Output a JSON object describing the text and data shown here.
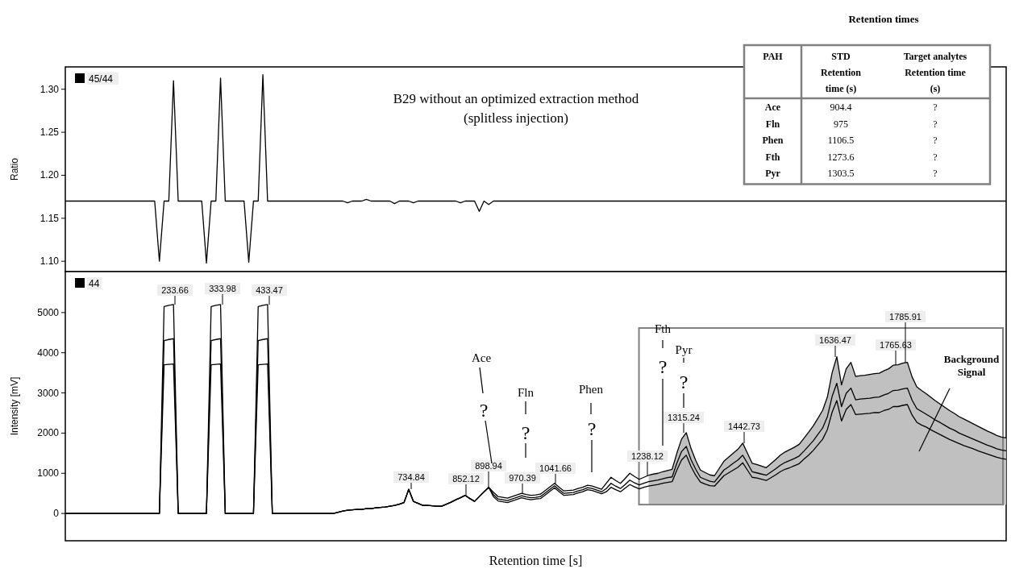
{
  "chart_data": [
    {
      "type": "line",
      "title": "B29 without an optimized extraction method",
      "subtitle": "(splitless injection)",
      "ylabel": "Ratio",
      "ylim": [
        1.088,
        1.326
      ],
      "yticks": [
        {
          "value": 1.1,
          "label": "1.10"
        },
        1.15,
        {
          "value": 1.2,
          "label": "1.20"
        },
        1.25,
        {
          "value": 1.3,
          "label": "1.30"
        }
      ],
      "tick_labels": "y",
      "legend": "top left",
      "categories": [
        null,
        null,
        null,
        null,
        null,
        null,
        null,
        null,
        null,
        null,
        null,
        null,
        null,
        null,
        null,
        null,
        null,
        null,
        null,
        null,
        null,
        null,
        null,
        null,
        null,
        null,
        null,
        null,
        null,
        null,
        null,
        null,
        null,
        null,
        null,
        null,
        null,
        null,
        null,
        null,
        null,
        null,
        null,
        null,
        null,
        null,
        null,
        null,
        null,
        null,
        null,
        null,
        null,
        null,
        null,
        null,
        null,
        null,
        null,
        null,
        null,
        null,
        null,
        null,
        null,
        null,
        null,
        null,
        null,
        null,
        null,
        null,
        null,
        null,
        null,
        null,
        null,
        null,
        null,
        null,
        null,
        null,
        null,
        null,
        null,
        null,
        null,
        null,
        null,
        null,
        null,
        null,
        null,
        null,
        null,
        null,
        null,
        null,
        null,
        null,
        null,
        null,
        null,
        null,
        null,
        null,
        null,
        null,
        null,
        null,
        null,
        null,
        null,
        null,
        null,
        null,
        null,
        null,
        null,
        null,
        null,
        null,
        null,
        null,
        null,
        null,
        null,
        null,
        null,
        null,
        null,
        null,
        null,
        null,
        null,
        null,
        null,
        null,
        null,
        null,
        null,
        null,
        null,
        null,
        null,
        null,
        null,
        null,
        null,
        null,
        null,
        null,
        null,
        null,
        null,
        null,
        null,
        null,
        null,
        null,
        null,
        null,
        null,
        null,
        null,
        null,
        null,
        null,
        null,
        null,
        null,
        null,
        null,
        null,
        null,
        null,
        null,
        null,
        null,
        null,
        null,
        null,
        null,
        null,
        null,
        null,
        null,
        null,
        null,
        null,
        null,
        null,
        null,
        null,
        null,
        null,
        null,
        null,
        null,
        null,
        null
      ],
      "series": [
        {
          "name": "45/44",
          "color": "#000000",
          "values": [
            1.17,
            1.17,
            1.17,
            1.17,
            1.17,
            1.17,
            1.17,
            1.17,
            1.17,
            1.17,
            1.17,
            1.17,
            1.17,
            1.17,
            1.17,
            1.17,
            1.17,
            1.17,
            1.17,
            1.17,
            1.1,
            1.17,
            1.17,
            1.31,
            1.17,
            1.17,
            1.17,
            1.17,
            1.17,
            1.17,
            1.098,
            1.17,
            1.17,
            1.313,
            1.17,
            1.17,
            1.17,
            1.17,
            1.17,
            1.099,
            1.17,
            1.17,
            1.317,
            1.17,
            1.17,
            1.17,
            1.17,
            1.17,
            1.17,
            1.17,
            1.17,
            1.17,
            1.17,
            1.17,
            1.17,
            1.17,
            1.17,
            1.17,
            1.17,
            1.17,
            1.168,
            1.17,
            1.17,
            1.17,
            1.172,
            1.17,
            1.17,
            1.17,
            1.17,
            1.17,
            1.167,
            1.17,
            1.17,
            1.17,
            1.168,
            1.17,
            1.17,
            1.17,
            1.17,
            1.17,
            1.17,
            1.17,
            1.17,
            1.17,
            1.168,
            1.17,
            1.17,
            1.17,
            1.158,
            1.17,
            1.166,
            1.17,
            1.17,
            1.17,
            1.17,
            1.17,
            1.17,
            1.17,
            1.17,
            1.17,
            1.17,
            1.17,
            1.17,
            1.17,
            1.17,
            1.17,
            1.17,
            1.17,
            1.17,
            1.17,
            1.17,
            1.17,
            1.17,
            1.17,
            1.17,
            1.17,
            1.17,
            1.17,
            1.17,
            1.17,
            1.17,
            1.17,
            1.17,
            1.17,
            1.17,
            1.17,
            1.17,
            1.17,
            1.17,
            1.17,
            1.17,
            1.17,
            1.17,
            1.17,
            1.17,
            1.17,
            1.17,
            1.17,
            1.17,
            1.17,
            1.17,
            1.17,
            1.17,
            1.17,
            1.17,
            1.17,
            1.17,
            1.17,
            1.17,
            1.17,
            1.17,
            1.17,
            1.17,
            1.17,
            1.17,
            1.17,
            1.17,
            1.17,
            1.17,
            1.17,
            1.17,
            1.17,
            1.17,
            1.17,
            1.17,
            1.17,
            1.17,
            1.17,
            1.17,
            1.17,
            1.17,
            1.17,
            1.17,
            1.17,
            1.17,
            1.17,
            1.17,
            1.17,
            1.17,
            1.17,
            1.17,
            1.17,
            1.17,
            1.17,
            1.17,
            1.17,
            1.17,
            1.17,
            1.17,
            1.17,
            1.17,
            1.17,
            1.17,
            1.17,
            1.17,
            1.17,
            1.17,
            1.17,
            1.17,
            1.17,
            1.17
          ]
        }
      ]
    },
    {
      "type": "line",
      "ylabel": "Intensity [mV]",
      "xlabel": "Retention time   [s]",
      "ylim": [
        -680,
        6020
      ],
      "yticks": [
        0,
        1000,
        2000,
        3000,
        4000,
        5000
      ],
      "tick_labels": "y",
      "legend": "top left",
      "categories": [
        null,
        null,
        null,
        null,
        null,
        null,
        null,
        null,
        null,
        null,
        null,
        null,
        null,
        null,
        null,
        null,
        null,
        null,
        null,
        null,
        null,
        null,
        null,
        null,
        null,
        null,
        null,
        null,
        null,
        null,
        null,
        null,
        null,
        null,
        null,
        null,
        null,
        null,
        null,
        null,
        null,
        null,
        null,
        null,
        null,
        null,
        null,
        null,
        null,
        null,
        null,
        null,
        null,
        null,
        null,
        null,
        null,
        null,
        null,
        null,
        null,
        null,
        null,
        null,
        null,
        null,
        null,
        null,
        null,
        null,
        null,
        null,
        null,
        null,
        null,
        null,
        null,
        null,
        null,
        null,
        null,
        null,
        null,
        null,
        null,
        null,
        null,
        null,
        null,
        null,
        null,
        null,
        null,
        null,
        null,
        null,
        null,
        null,
        null,
        null,
        null,
        null,
        null,
        null,
        null,
        null,
        null,
        null,
        null,
        null,
        null,
        null,
        null,
        null,
        null,
        null,
        null,
        null,
        null,
        null,
        null,
        null,
        null,
        null,
        null,
        null,
        null,
        null,
        null,
        null,
        null,
        null,
        null,
        null,
        null,
        null,
        null,
        null,
        null,
        null,
        null,
        null,
        null,
        null,
        null,
        null,
        null,
        null,
        null,
        null,
        null,
        null,
        null,
        null,
        null,
        null,
        null,
        null,
        null,
        null,
        null,
        null,
        null,
        null,
        null,
        null,
        null,
        null,
        null,
        null,
        null,
        null,
        null,
        null,
        null,
        null,
        null,
        null,
        null,
        null,
        null,
        null,
        null,
        null,
        null,
        null,
        null,
        null,
        null,
        null,
        null,
        null,
        null,
        null,
        null,
        null,
        null,
        null,
        null,
        null,
        null
      ],
      "series": [
        {
          "name": "44",
          "color": "#000000",
          "values": [
            0,
            0,
            0,
            0,
            0,
            0,
            0,
            0,
            0,
            0,
            0,
            0,
            0,
            0,
            0,
            0,
            0,
            0,
            0,
            0,
            0,
            5150,
            5180,
            5200,
            0,
            0,
            0,
            0,
            0,
            0,
            0,
            5150,
            5180,
            5200,
            0,
            0,
            0,
            0,
            0,
            0,
            0,
            5150,
            5180,
            5200,
            0,
            0,
            0,
            0,
            0,
            0,
            0,
            0,
            0,
            0,
            0,
            0,
            0,
            0,
            30,
            60,
            80,
            90,
            100,
            100,
            120,
            120,
            140,
            150,
            160,
            180,
            200,
            230,
            270,
            600,
            300,
            250,
            200,
            200,
            190,
            180,
            180,
            230,
            280,
            340,
            390,
            450,
            370,
            300,
            420,
            540,
            650,
            530,
            420,
            400,
            380,
            420,
            460,
            500,
            470,
            450,
            460,
            480,
            570,
            660,
            750,
            650,
            560,
            570,
            580,
            620,
            650,
            700,
            680,
            640,
            600,
            750,
            900,
            820,
            750,
            870,
            1000,
            920,
            850,
            900,
            950,
            980,
            1000,
            1040,
            1070,
            1100,
            1500,
            1850,
            2010,
            1620,
            1320,
            1080,
            1020,
            960,
            940,
            1120,
            1300,
            1400,
            1500,
            1600,
            1750,
            1500,
            1250,
            1220,
            1180,
            1140,
            1240,
            1340,
            1450,
            1530,
            1590,
            1650,
            1720,
            1870,
            2020,
            2180,
            2370,
            2570,
            2900,
            3500,
            3900,
            3200,
            3600,
            3760,
            3410,
            3430,
            3440,
            3460,
            3480,
            3490,
            3550,
            3600,
            3690,
            3700,
            3740,
            3760,
            3400,
            3150,
            3060,
            2980,
            2890,
            2800,
            2720,
            2640,
            2560,
            2490,
            2410,
            2350,
            2290,
            2230,
            2170,
            2110,
            2050,
            2000,
            1940,
            1900,
            1880
          ],
          "lower": [
            null,
            null,
            null,
            null,
            null,
            null,
            null,
            null,
            null,
            null,
            null,
            null,
            null,
            null,
            null,
            null,
            null,
            null,
            null,
            null,
            null,
            null,
            null,
            null,
            null,
            null,
            null,
            null,
            null,
            null,
            null,
            null,
            null,
            null,
            null,
            null,
            null,
            null,
            null,
            null,
            null,
            null,
            null,
            null,
            null,
            null,
            null,
            null,
            null,
            null,
            null,
            null,
            null,
            null,
            null,
            null,
            null,
            null,
            null,
            null,
            null,
            null,
            null,
            null,
            null,
            null,
            null,
            null,
            null,
            null,
            null,
            null,
            null,
            null,
            null,
            null,
            null,
            null,
            null,
            null,
            null,
            null,
            null,
            null,
            null,
            null,
            null,
            null,
            null,
            null,
            null,
            null,
            null,
            null,
            null,
            null,
            null,
            null,
            null,
            null,
            null,
            null,
            null,
            null,
            null,
            null,
            null,
            null,
            null,
            null,
            null,
            null,
            null,
            null,
            null,
            null,
            null,
            null,
            null,
            null,
            null,
            null,
            null,
            null,
            220,
            220,
            220,
            220,
            220,
            220,
            220,
            220,
            220,
            220,
            220,
            220,
            220,
            220,
            220,
            220,
            220,
            220,
            220,
            220,
            220,
            220,
            220,
            220,
            220,
            220,
            220,
            220,
            220,
            220,
            220,
            220,
            220,
            220,
            220,
            220,
            220,
            220,
            220,
            220,
            220,
            220,
            220,
            220,
            220,
            220,
            220,
            220,
            220,
            220,
            220,
            220,
            220,
            220,
            220,
            220,
            220,
            220,
            220,
            220,
            220,
            220,
            220,
            220,
            220,
            220,
            220,
            220,
            220,
            220,
            220,
            220,
            220,
            220,
            220,
            220,
            220
          ],
          "upper": [
            null,
            null,
            null,
            null,
            null,
            null,
            null,
            null,
            null,
            null,
            null,
            null,
            null,
            null,
            null,
            null,
            null,
            null,
            null,
            null,
            null,
            null,
            null,
            null,
            null,
            null,
            null,
            null,
            null,
            null,
            null,
            null,
            null,
            null,
            null,
            null,
            null,
            null,
            null,
            null,
            null,
            null,
            null,
            null,
            null,
            null,
            null,
            null,
            null,
            null,
            null,
            null,
            null,
            null,
            null,
            null,
            null,
            null,
            null,
            null,
            null,
            null,
            null,
            null,
            null,
            null,
            null,
            null,
            null,
            null,
            null,
            null,
            null,
            null,
            null,
            null,
            null,
            null,
            null,
            null,
            null,
            null,
            null,
            null,
            null,
            null,
            null,
            null,
            null,
            null,
            null,
            null,
            null,
            null,
            null,
            null,
            null,
            null,
            null,
            null,
            null,
            null,
            null,
            null,
            null,
            null,
            null,
            null,
            null,
            null,
            null,
            null,
            null,
            null,
            null,
            null,
            null,
            null,
            null,
            null,
            null,
            null,
            null,
            null,
            950,
            980,
            1000,
            1040,
            1070,
            1100,
            1500,
            1850,
            2010,
            1620,
            1320,
            1080,
            1020,
            960,
            940,
            1120,
            1300,
            1400,
            1500,
            1600,
            1750,
            1500,
            1250,
            1220,
            1180,
            1140,
            1240,
            1340,
            1450,
            1530,
            1590,
            1650,
            1720,
            1870,
            2020,
            2180,
            2370,
            2570,
            2900,
            3500,
            3900,
            3200,
            3600,
            3760,
            3410,
            3430,
            3440,
            3460,
            3480,
            3490,
            3550,
            3600,
            3690,
            3700,
            3740,
            3760,
            3400,
            3150,
            3060,
            2980,
            2890,
            2800,
            2720,
            2640,
            2560,
            2490,
            2410,
            2350,
            2290,
            2230,
            2170,
            2110,
            2050,
            2000,
            1940,
            1900,
            1880
          ]
        },
        {
          "color": "#000000",
          "values": [
            0,
            0,
            0,
            0,
            0,
            0,
            0,
            0,
            0,
            0,
            0,
            0,
            0,
            0,
            0,
            0,
            0,
            0,
            0,
            0,
            0,
            4300,
            4330,
            4350,
            0,
            0,
            0,
            0,
            0,
            0,
            0,
            4300,
            4330,
            4350,
            0,
            0,
            0,
            0,
            0,
            0,
            0,
            4300,
            4330,
            4350,
            0,
            0,
            0,
            0,
            0,
            0,
            0,
            0,
            0,
            0,
            0,
            0,
            0,
            0,
            30,
            60,
            80,
            90,
            100,
            100,
            120,
            120,
            140,
            150,
            160,
            180,
            200,
            230,
            270,
            600,
            300,
            250,
            200,
            200,
            190,
            180,
            180,
            230,
            280,
            340,
            390,
            450,
            370,
            300,
            420,
            540,
            650,
            470,
            360,
            340,
            320,
            360,
            400,
            440,
            410,
            390,
            400,
            420,
            510,
            600,
            690,
            590,
            500,
            510,
            520,
            560,
            590,
            640,
            620,
            580,
            540,
            620,
            750,
            680,
            620,
            720,
            830,
            760,
            710,
            750,
            790,
            810,
            830,
            860,
            890,
            910,
            1250,
            1540,
            1670,
            1340,
            1100,
            900,
            850,
            800,
            780,
            930,
            1080,
            1160,
            1250,
            1330,
            1450,
            1250,
            1040,
            1010,
            980,
            950,
            1030,
            1110,
            1200,
            1270,
            1320,
            1370,
            1430,
            1550,
            1680,
            1810,
            1970,
            2130,
            2410,
            2910,
            3240,
            2660,
            2990,
            3120,
            2830,
            2850,
            2860,
            2870,
            2890,
            2900,
            2950,
            2990,
            3060,
            3070,
            3100,
            3120,
            2820,
            2610,
            2540,
            2470,
            2400,
            2320,
            2260,
            2190,
            2120,
            2070,
            2000,
            1950,
            1900,
            1850,
            1800,
            1750,
            1700,
            1660,
            1610,
            1580,
            1560
          ]
        },
        {
          "color": "#000000",
          "values": [
            0,
            0,
            0,
            0,
            0,
            0,
            0,
            0,
            0,
            0,
            0,
            0,
            0,
            0,
            0,
            0,
            0,
            0,
            0,
            0,
            0,
            3700,
            3710,
            3720,
            0,
            0,
            0,
            0,
            0,
            0,
            0,
            3700,
            3710,
            3720,
            0,
            0,
            0,
            0,
            0,
            0,
            0,
            3700,
            3710,
            3720,
            0,
            0,
            0,
            0,
            0,
            0,
            0,
            0,
            0,
            0,
            0,
            0,
            0,
            0,
            30,
            60,
            80,
            90,
            100,
            100,
            120,
            120,
            140,
            150,
            160,
            180,
            200,
            230,
            270,
            600,
            300,
            250,
            200,
            200,
            190,
            180,
            180,
            230,
            280,
            340,
            390,
            450,
            370,
            300,
            420,
            540,
            650,
            420,
            310,
            290,
            270,
            310,
            350,
            390,
            360,
            340,
            360,
            370,
            460,
            550,
            640,
            540,
            450,
            460,
            470,
            510,
            540,
            590,
            570,
            530,
            490,
            540,
            650,
            590,
            540,
            630,
            720,
            660,
            610,
            650,
            680,
            700,
            720,
            750,
            770,
            790,
            1080,
            1330,
            1450,
            1170,
            950,
            780,
            730,
            690,
            680,
            810,
            940,
            1010,
            1080,
            1150,
            1260,
            1080,
            900,
            880,
            850,
            820,
            890,
            960,
            1040,
            1100,
            1140,
            1190,
            1240,
            1350,
            1450,
            1570,
            1710,
            1850,
            2090,
            2520,
            2810,
            2300,
            2590,
            2710,
            2460,
            2470,
            2480,
            2490,
            2510,
            2510,
            2560,
            2590,
            2660,
            2660,
            2690,
            2710,
            2450,
            2270,
            2200,
            2150,
            2080,
            2020,
            1960,
            1900,
            1840,
            1790,
            1740,
            1690,
            1650,
            1610,
            1560,
            1520,
            1480,
            1440,
            1400,
            1370,
            1350
          ]
        }
      ],
      "annotations": [
        "233.66",
        "333.98",
        "433.47",
        "734.84",
        "852.12",
        "898.94",
        "970.39",
        "1041.66",
        "1238.12",
        "1315.24",
        "1442.73",
        "1636.47",
        "1765.63",
        "1785.91",
        "Ace",
        "?",
        "Fln",
        "?",
        "Phen",
        "?",
        "Fth",
        "?",
        "Pyr",
        "?",
        "Background\nSignal"
      ]
    },
    {
      "type": "other",
      "title": "Retention times",
      "categories": [
        "PAH",
        "STD\nRetention\ntime (s)",
        "Target analytes\nRetention time\n(s)"
      ],
      "y_categories": [
        "Ace",
        "Fln",
        "Phen",
        "Fth",
        "Pyr"
      ],
      "cell_labels": [
        [
          "904.4",
          "?"
        ],
        [
          "975",
          "?"
        ],
        [
          "1106.5",
          "?"
        ],
        [
          "1273.6",
          "?"
        ],
        [
          "1303.5",
          "?"
        ]
      ]
    }
  ]
}
